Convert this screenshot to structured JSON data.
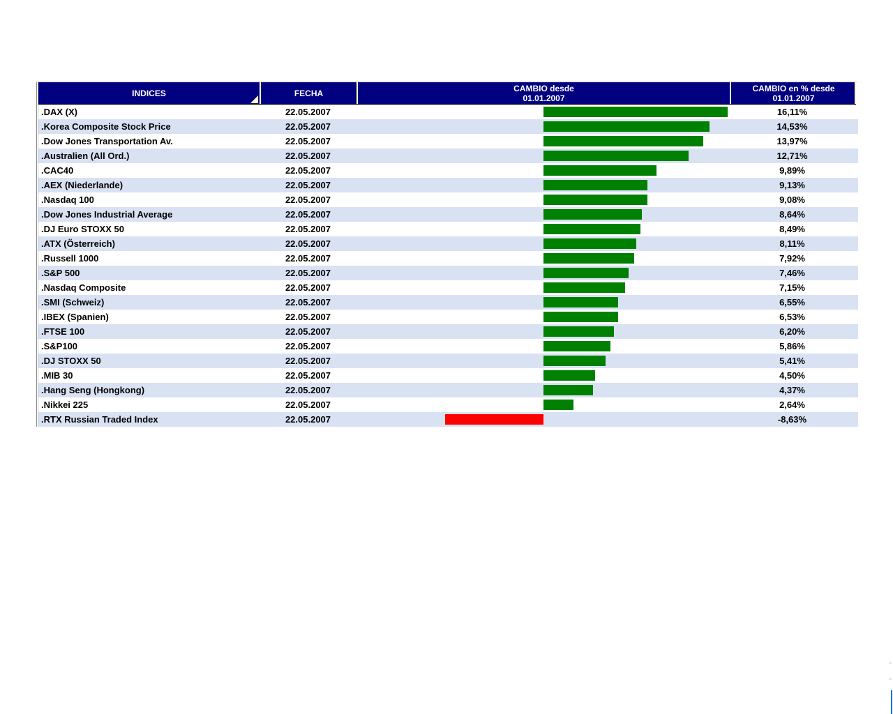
{
  "header": {
    "cols": [
      {
        "line1": "INDICES",
        "line2": ""
      },
      {
        "line1": "FECHA",
        "line2": ""
      },
      {
        "line1": "CAMBIO desde",
        "line2": "01.01.2007"
      },
      {
        "line1": "CAMBIO en % desde",
        "line2": "01.01.2007"
      }
    ]
  },
  "table_rows": [
    {
      "index": ".DAX (X)",
      "fecha": "22.05.2007",
      "pct_label": "16,11%",
      "pct": 16.11
    },
    {
      "index": ".Korea Composite Stock Price",
      "fecha": "22.05.2007",
      "pct_label": "14,53%",
      "pct": 14.53
    },
    {
      "index": ".Dow Jones Transportation Av.",
      "fecha": "22.05.2007",
      "pct_label": "13,97%",
      "pct": 13.97
    },
    {
      "index": ".Australien (All Ord.)",
      "fecha": "22.05.2007",
      "pct_label": "12,71%",
      "pct": 12.71
    },
    {
      "index": ".CAC40",
      "fecha": "22.05.2007",
      "pct_label": "9,89%",
      "pct": 9.89
    },
    {
      "index": ".AEX (Niederlande)",
      "fecha": "22.05.2007",
      "pct_label": "9,13%",
      "pct": 9.13
    },
    {
      "index": ".Nasdaq 100",
      "fecha": "22.05.2007",
      "pct_label": "9,08%",
      "pct": 9.08
    },
    {
      "index": ".Dow Jones Industrial Average",
      "fecha": "22.05.2007",
      "pct_label": "8,64%",
      "pct": 8.64
    },
    {
      "index": ".DJ Euro STOXX 50",
      "fecha": "22.05.2007",
      "pct_label": "8,49%",
      "pct": 8.49
    },
    {
      "index": ".ATX (Österreich)",
      "fecha": "22.05.2007",
      "pct_label": "8,11%",
      "pct": 8.11
    },
    {
      "index": ".Russell 1000",
      "fecha": "22.05.2007",
      "pct_label": "7,92%",
      "pct": 7.92
    },
    {
      "index": ".S&P 500",
      "fecha": "22.05.2007",
      "pct_label": "7,46%",
      "pct": 7.46
    },
    {
      "index": ".Nasdaq Composite",
      "fecha": "22.05.2007",
      "pct_label": "7,15%",
      "pct": 7.15
    },
    {
      "index": ".SMI (Schweiz)",
      "fecha": "22.05.2007",
      "pct_label": "6,55%",
      "pct": 6.55
    },
    {
      "index": ".IBEX (Spanien)",
      "fecha": "22.05.2007",
      "pct_label": "6,53%",
      "pct": 6.53
    },
    {
      "index": ".FTSE 100",
      "fecha": "22.05.2007",
      "pct_label": "6,20%",
      "pct": 6.2
    },
    {
      "index": ".S&P100",
      "fecha": "22.05.2007",
      "pct_label": "5,86%",
      "pct": 5.86
    },
    {
      "index": ".DJ STOXX 50",
      "fecha": "22.05.2007",
      "pct_label": "5,41%",
      "pct": 5.41
    },
    {
      "index": ".MIB 30",
      "fecha": "22.05.2007",
      "pct_label": "4,50%",
      "pct": 4.5
    },
    {
      "index": ".Hang Seng (Hongkong)",
      "fecha": "22.05.2007",
      "pct_label": "4,37%",
      "pct": 4.37
    },
    {
      "index": ".Nikkei 225",
      "fecha": "22.05.2007",
      "pct_label": "2,64%",
      "pct": 2.64
    },
    {
      "index": ".RTX Russian Traded Index",
      "fecha": "22.05.2007",
      "pct_label": "-8,63%",
      "pct": -8.63
    }
  ],
  "chart_data": {
    "type": "bar",
    "title": "CAMBIO desde 01.01.2007",
    "categories": [
      ".DAX (X)",
      ".Korea Composite Stock Price",
      ".Dow Jones Transportation Av.",
      ".Australien (All Ord.)",
      ".CAC40",
      ".AEX (Niederlande)",
      ".Nasdaq 100",
      ".Dow Jones Industrial Average",
      ".DJ Euro STOXX 50",
      ".ATX (Österreich)",
      ".Russell 1000",
      ".S&P 500",
      ".Nasdaq Composite",
      ".SMI (Schweiz)",
      ".IBEX (Spanien)",
      ".FTSE 100",
      ".S&P100",
      ".DJ STOXX 50",
      ".MIB 30",
      ".Hang Seng (Hongkong)",
      ".Nikkei 225",
      ".RTX Russian Traded Index"
    ],
    "values": [
      16.11,
      14.53,
      13.97,
      12.71,
      9.89,
      9.13,
      9.08,
      8.64,
      8.49,
      8.11,
      7.92,
      7.46,
      7.15,
      6.55,
      6.53,
      6.2,
      5.86,
      5.41,
      4.5,
      4.37,
      2.64,
      -8.63
    ],
    "xlabel": "",
    "ylabel": "CAMBIO en % desde 01.01.2007"
  },
  "colors": {
    "header_bg": "#000080",
    "header_text": "#ffffff",
    "row_alt_bg": "#d9e2f3",
    "bar_positive": "#008000",
    "bar_negative": "#ff0000",
    "header_divider": "#ffffc0",
    "sort_triangle": "#ffffc0",
    "right_edge_line": "#1877d2"
  }
}
